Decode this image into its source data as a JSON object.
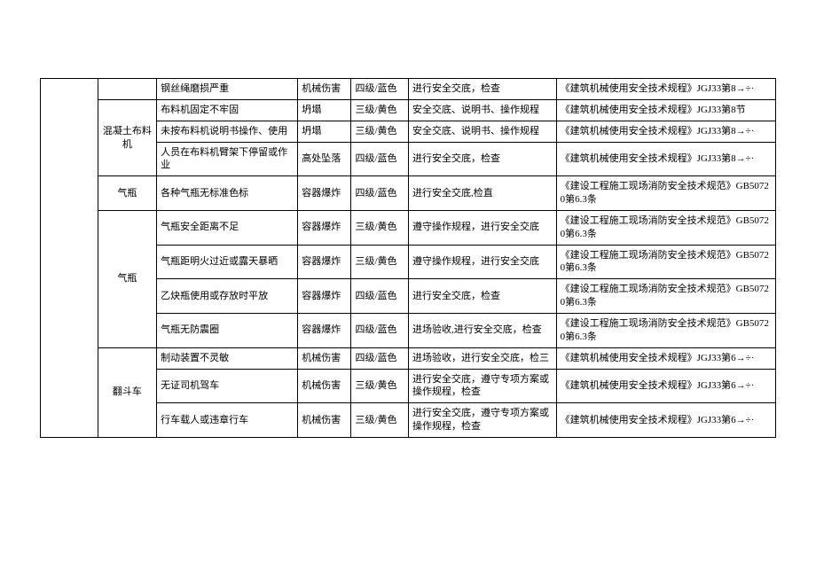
{
  "table": {
    "border_color": "#000000",
    "bg_color": "#ffffff",
    "font_size": 11,
    "rows": [
      {
        "c1": "",
        "c2": "钢丝绳磨损严重",
        "c3": "机械伤害",
        "c4": "四级/蓝色",
        "c5": "进行安全交底，检查",
        "c6": "《建筑机械使用安全技术规程》JGJ33第8→÷·"
      },
      {
        "c1": "混凝土布料机",
        "c2": "布料机固定不牢固",
        "c3": "坍塌",
        "c4": "三级/黄色",
        "c5": "安全交底、说明书、操作规程",
        "c6": "《建筑机械使用安全技术规程》JGJ33第8节"
      },
      {
        "c2": "未按布料机说明书操作、使用",
        "c3": "坍塌",
        "c4": "三级/黄色",
        "c5": "安全交底、说明书、操作规程",
        "c6": "《建筑机械使用安全技术规程》JGJ33第8→÷·"
      },
      {
        "c2": "人员在布料机臂架下停留或作业",
        "c3": "高处坠落",
        "c4": "四级/蓝色",
        "c5": "进行安全交底，检查",
        "c6": "《建筑机械使用安全技术规程》JGJ33第8→÷·"
      },
      {
        "c1": "气瓶",
        "c2": "各种气瓶无标准色标",
        "c3": "容器爆炸",
        "c4": "四级/蓝色",
        "c5": "进行安全交底,检直",
        "c6": "《建设工程施工现场消防安全技术规范》GB50720第6.3条"
      },
      {
        "c1": "气瓶",
        "c2": "气瓶安全距离不足",
        "c3": "容器爆炸",
        "c4": "三级/黄色",
        "c5": "遵守操作规程，进行安全交底",
        "c6": "《建设工程施工现场消防安全技术规范》GB50720第6.3条"
      },
      {
        "c2": "气瓶距明火过近或露天暴晒",
        "c3": "容器爆炸",
        "c4": "三级/黄色",
        "c5": "遵守操作规程，进行安全交底",
        "c6": "《建设工程施工现场消防安全技术规范》GB50720第6.3条"
      },
      {
        "c2": "乙炔瓶使用或存放时平放",
        "c3": "容器爆炸",
        "c4": "四级/蓝色",
        "c5": "进行安全交底，检查",
        "c6": "《建设工程施工现场消防安全技术规范》GB50720第6.3条"
      },
      {
        "c2": "气瓶无防震圈",
        "c3": "容器爆炸",
        "c4": "四级/蓝色",
        "c5": "进场验收,进行安全交底，检查",
        "c6": "《建设工程施工现场消防安全技术规范》GB50720第6.3条"
      },
      {
        "c1": "翻斗车",
        "c2": "制动装置不灵敏",
        "c3": "机械伤害",
        "c4": "四级/蓝色",
        "c5": "进场验收，进行安全交底，检三",
        "c6": "《建筑机械使用安全技术规程》JGJ33第6→÷·"
      },
      {
        "c2": "无证司机驾车",
        "c3": "机械伤害",
        "c4": "三级/黄色",
        "c5": "进行安全交底，遵守专项方案或操作规程，检查",
        "c6": "《建筑机械使用安全技术规程》JGJ33第6→÷·"
      },
      {
        "c2": "行车载人或违章行车",
        "c3": "机械伤害",
        "c4": "三级/黄色",
        "c5": "进行安全交底，遵守专项方案或操作规程，检查",
        "c6": "《建筑机械使用安全技术规程》JGJ33第6→÷·"
      }
    ]
  }
}
